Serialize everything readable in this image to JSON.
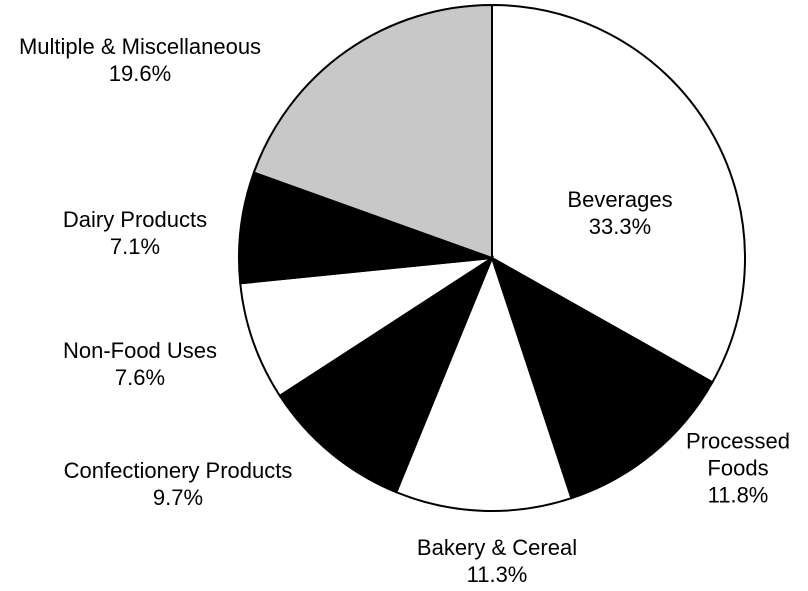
{
  "chart_data": {
    "type": "pie",
    "categories": [
      "Beverages",
      "Processed Foods",
      "Bakery & Cereal",
      "Confectionery Products",
      "Non-Food Uses",
      "Dairy Products",
      "Multiple & Miscellaneous"
    ],
    "values": [
      33.3,
      11.8,
      11.3,
      9.7,
      7.6,
      7.1,
      19.6
    ],
    "value_labels": [
      "33.3%",
      "11.8%",
      "11.3%",
      "9.7%",
      "7.6%",
      "7.1%",
      "19.6%"
    ],
    "colors": [
      "#ffffff",
      "#000000",
      "#ffffff",
      "#000000",
      "#ffffff",
      "#000000",
      "#c8c8c8"
    ]
  }
}
